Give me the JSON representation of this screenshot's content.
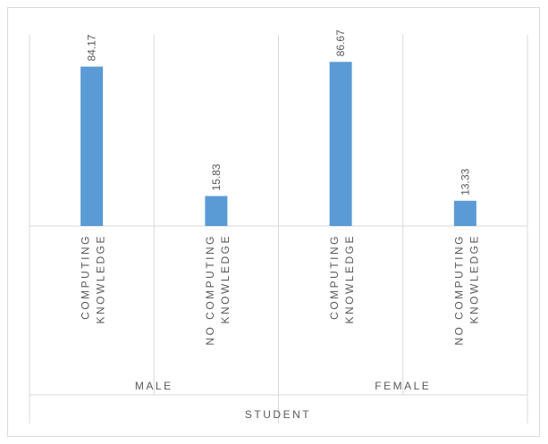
{
  "chart_data": {
    "type": "bar",
    "groups": [
      {
        "name": "MALE",
        "categories": [
          "COMPUTING KNOWLEDGE",
          "NO COMPUTING KNOWLEDGE"
        ],
        "values": [
          84.17,
          15.83
        ]
      },
      {
        "name": "FEMALE",
        "categories": [
          "COMPUTING KNOWLEDGE",
          "NO COMPUTING KNOWLEDGE"
        ],
        "values": [
          86.67,
          13.33
        ]
      }
    ],
    "category_lines": [
      [
        "COMPUTING",
        "KNOWLEDGE"
      ],
      [
        "NO COMPUTING",
        "KNOWLEDGE"
      ],
      [
        "COMPUTING",
        "KNOWLEDGE"
      ],
      [
        "NO COMPUTING",
        "KNOWLEDGE"
      ]
    ],
    "data_labels": [
      "84.17",
      "15.83",
      "86.67",
      "13.33"
    ],
    "xlabel": "STUDENT",
    "ylabel": "",
    "ylim": [
      0,
      100
    ],
    "grid": true,
    "legend": "none",
    "bar_color": "#5b9bd5",
    "grid_color": "#d9d9d9",
    "text_color": "#595959"
  }
}
